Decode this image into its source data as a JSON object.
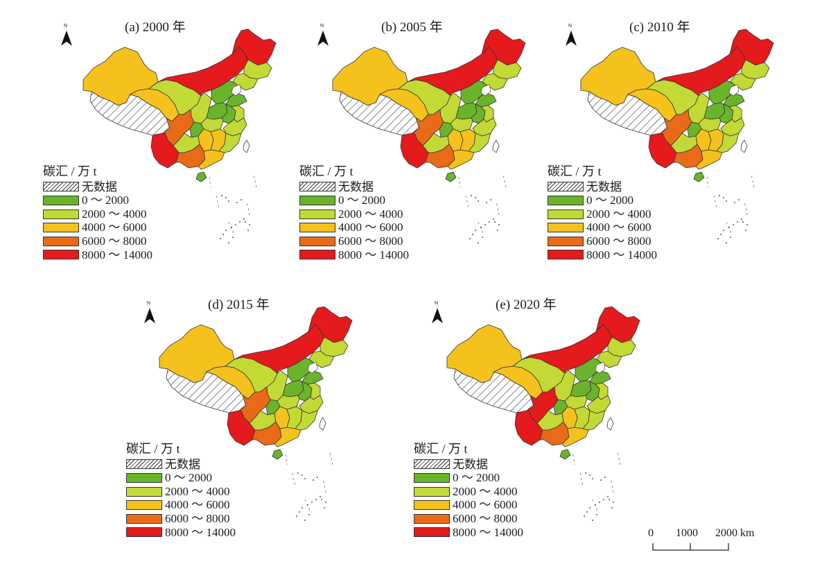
{
  "figure": {
    "legend": {
      "title": "碳汇 / 万 t",
      "items": [
        {
          "key": "nodata",
          "label": "无数据",
          "color": "hatch"
        },
        {
          "key": "c1",
          "label": "0 ～ 2000",
          "color": "#6ab42c"
        },
        {
          "key": "c2",
          "label": "2000 ～ 4000",
          "color": "#c3d935"
        },
        {
          "key": "c3",
          "label": "4000 ～ 6000",
          "color": "#f5c21d"
        },
        {
          "key": "c4",
          "label": "6000 ～ 8000",
          "color": "#e96a19"
        },
        {
          "key": "c5",
          "label": "8000 ～ 14000",
          "color": "#e41a1c"
        }
      ]
    },
    "north_label": "N",
    "scale_bar": {
      "ticks": [
        "0",
        "1000",
        "2000 km"
      ]
    },
    "panels": [
      {
        "id": "a",
        "title": "(a) 2000 年",
        "regions": {
          "xinjiang": "c3",
          "tibet": "nodata",
          "qinghai": "c3",
          "gansu": "c2",
          "inner_mongolia": "c5",
          "heilongjiang": "c5",
          "jilin": "c2",
          "liaoning": "c2",
          "north_china": "c1",
          "shandong": "c1",
          "shaanxi": "c2",
          "sichuan": "c4",
          "yunnan": "c5",
          "guizhou": "c2",
          "chongqing": "c1",
          "hubei": "c2",
          "henan": "c1",
          "anhui": "c1",
          "jiangsu": "c2",
          "hunan": "c3",
          "jiangxi": "c3",
          "zhejiang": "c2",
          "fujian": "c2",
          "guangxi": "c4",
          "guangdong": "c3",
          "hainan": "c1",
          "taiwan": "none"
        }
      },
      {
        "id": "b",
        "title": "(b) 2005 年",
        "regions": {
          "xinjiang": "c3",
          "tibet": "nodata",
          "qinghai": "c3",
          "gansu": "c2",
          "inner_mongolia": "c5",
          "heilongjiang": "c5",
          "jilin": "c2",
          "liaoning": "c2",
          "north_china": "c1",
          "shandong": "c1",
          "shaanxi": "c2",
          "sichuan": "c4",
          "yunnan": "c5",
          "guizhou": "c2",
          "chongqing": "c1",
          "hubei": "c2",
          "henan": "c1",
          "anhui": "c1",
          "jiangsu": "c2",
          "hunan": "c3",
          "jiangxi": "c3",
          "zhejiang": "c2",
          "fujian": "c2",
          "guangxi": "c4",
          "guangdong": "c3",
          "hainan": "c1",
          "taiwan": "none"
        }
      },
      {
        "id": "c",
        "title": "(c) 2010 年",
        "regions": {
          "xinjiang": "c3",
          "tibet": "nodata",
          "qinghai": "c3",
          "gansu": "c2",
          "inner_mongolia": "c5",
          "heilongjiang": "c5",
          "jilin": "c2",
          "liaoning": "c2",
          "north_china": "c1",
          "shandong": "c1",
          "shaanxi": "c2",
          "sichuan": "c4",
          "yunnan": "c5",
          "guizhou": "c2",
          "chongqing": "c1",
          "hubei": "c2",
          "henan": "c1",
          "anhui": "c1",
          "jiangsu": "c2",
          "hunan": "c3",
          "jiangxi": "c3",
          "zhejiang": "c2",
          "fujian": "c2",
          "guangxi": "c4",
          "guangdong": "c3",
          "hainan": "c1",
          "taiwan": "none"
        }
      },
      {
        "id": "d",
        "title": "(d) 2015 年",
        "regions": {
          "xinjiang": "c3",
          "tibet": "nodata",
          "qinghai": "c3",
          "gansu": "c2",
          "inner_mongolia": "c5",
          "heilongjiang": "c5",
          "jilin": "c2",
          "liaoning": "c2",
          "north_china": "c1",
          "shandong": "c1",
          "shaanxi": "c2",
          "sichuan": "c4",
          "yunnan": "c5",
          "guizhou": "c2",
          "chongqing": "c1",
          "hubei": "c2",
          "henan": "c1",
          "anhui": "c1",
          "jiangsu": "c2",
          "hunan": "c3",
          "jiangxi": "c2",
          "zhejiang": "c2",
          "fujian": "c2",
          "guangxi": "c4",
          "guangdong": "c3",
          "hainan": "c1",
          "taiwan": "none"
        }
      },
      {
        "id": "e",
        "title": "(e) 2020 年",
        "regions": {
          "xinjiang": "c3",
          "tibet": "nodata",
          "qinghai": "c3",
          "gansu": "c2",
          "inner_mongolia": "c5",
          "heilongjiang": "c5",
          "jilin": "c2",
          "liaoning": "c2",
          "north_china": "c1",
          "shandong": "c1",
          "shaanxi": "c2",
          "sichuan": "c5",
          "yunnan": "c5",
          "guizhou": "c2",
          "chongqing": "c1",
          "hubei": "c2",
          "henan": "c1",
          "anhui": "c1",
          "jiangsu": "c2",
          "hunan": "c3",
          "jiangxi": "c2",
          "zhejiang": "c2",
          "fujian": "c2",
          "guangxi": "c4",
          "guangdong": "c3",
          "hainan": "c1",
          "taiwan": "none"
        }
      }
    ]
  }
}
